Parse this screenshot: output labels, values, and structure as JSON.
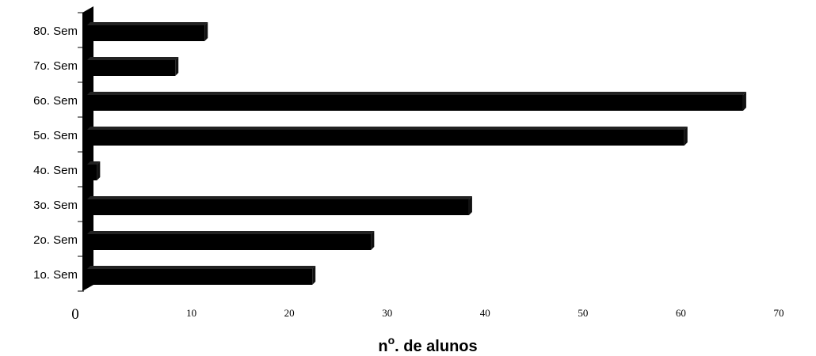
{
  "chart_data": {
    "type": "bar",
    "orientation": "horizontal",
    "style": "3d",
    "categories": [
      "1o. Sem",
      "2o. Sem",
      "3o. Sem",
      "4o. Sem",
      "5o. Sem",
      "6o. Sem",
      "7o. Sem",
      "80. Sem"
    ],
    "values": [
      23,
      29,
      39,
      1,
      61,
      67,
      9,
      12
    ],
    "xlabel_main": "n",
    "xlabel_sup": "o",
    "xlabel_rest": ". de alunos",
    "xlim": [
      0,
      70
    ],
    "xticks": [
      "0",
      "10",
      "20",
      "30",
      "40",
      "50",
      "60",
      "70"
    ],
    "grid": false,
    "legend": "none",
    "bar_color": "#000000"
  }
}
